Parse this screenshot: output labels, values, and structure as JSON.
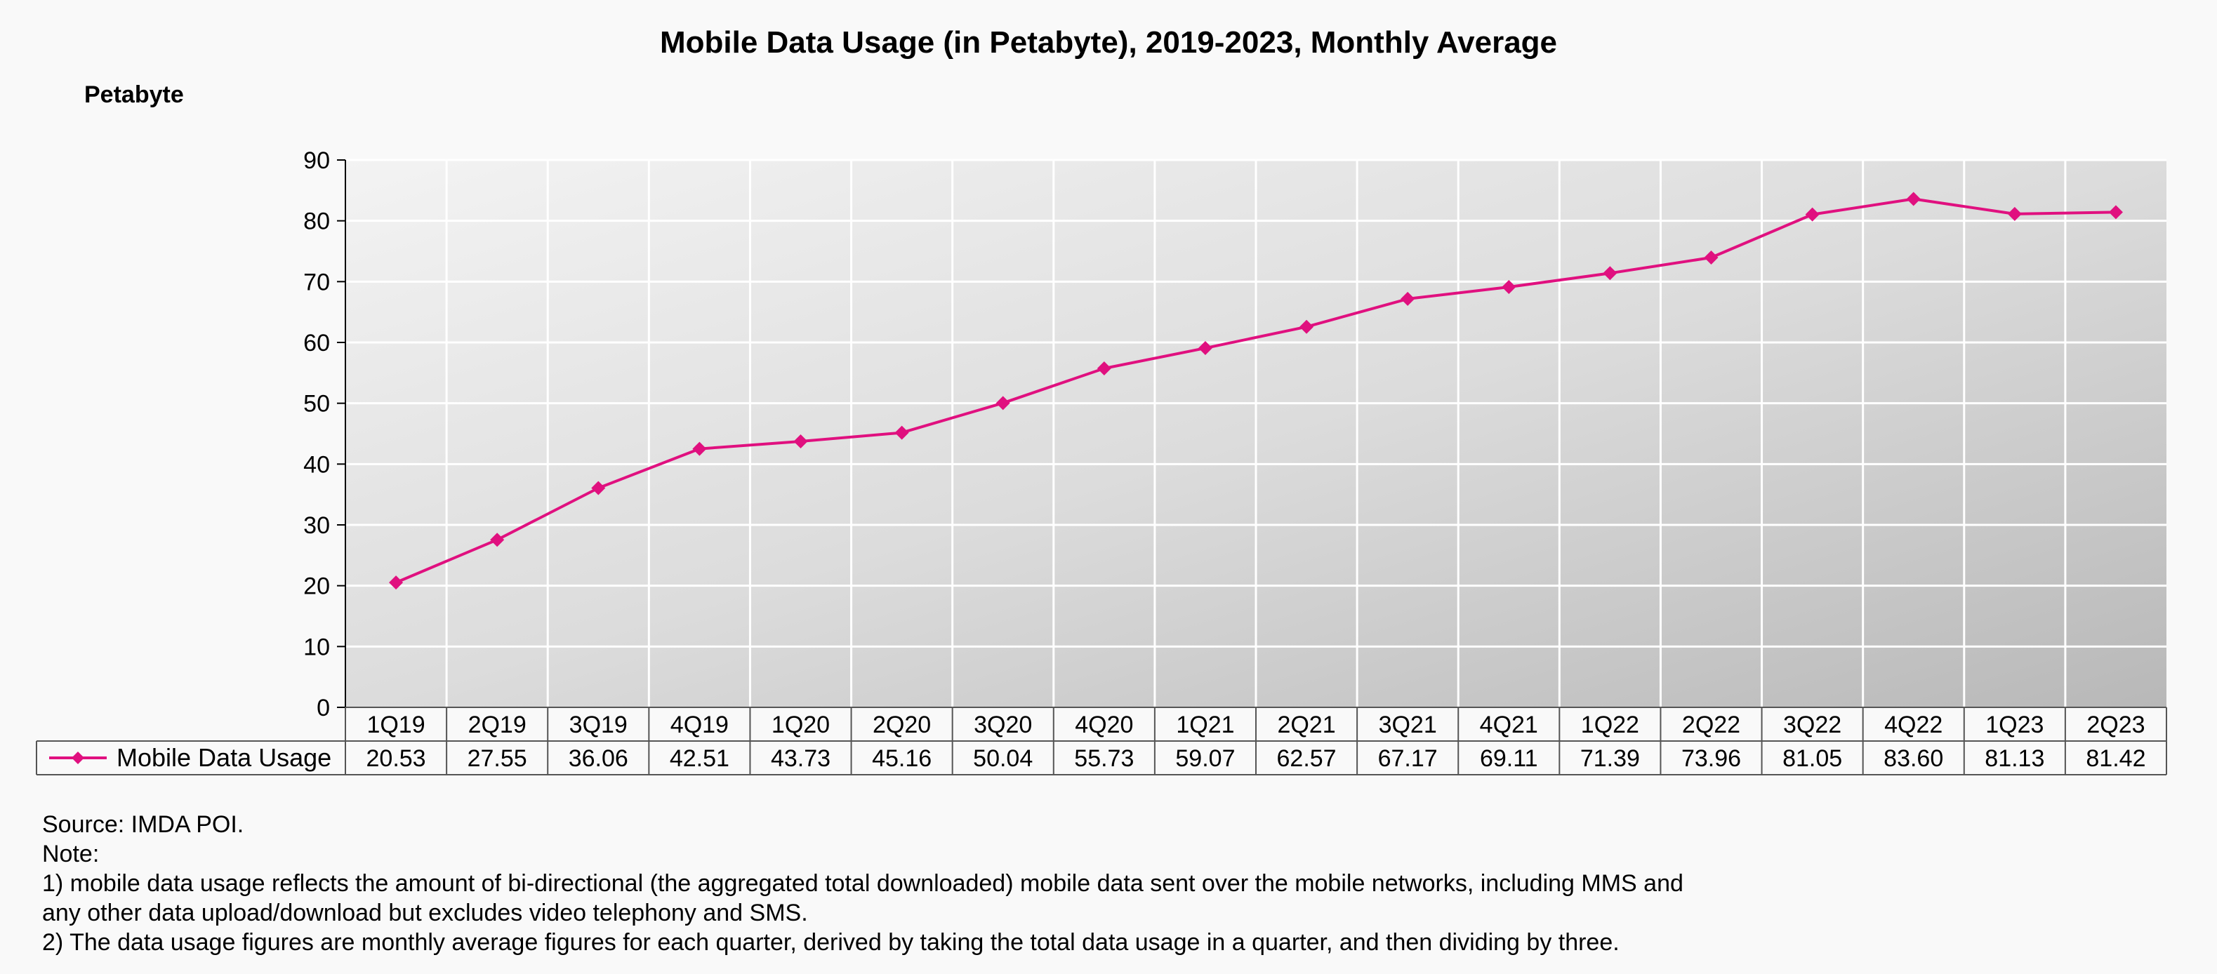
{
  "chart_data": {
    "type": "line",
    "title": "Mobile Data Usage (in Petabyte), 2019-2023, Monthly Average",
    "ylabel": "Petabyte",
    "xlabel": "",
    "ylim": [
      0,
      90
    ],
    "yticks": [
      "0",
      "10",
      "20",
      "30",
      "40",
      "50",
      "60",
      "70",
      "80",
      "90"
    ],
    "grid": true,
    "legend": "data-table-row",
    "categories": [
      "1Q19",
      "2Q19",
      "3Q19",
      "4Q19",
      "1Q20",
      "2Q20",
      "3Q20",
      "4Q20",
      "1Q21",
      "2Q21",
      "3Q21",
      "4Q21",
      "1Q22",
      "2Q22",
      "3Q22",
      "4Q22",
      "1Q23",
      "2Q23"
    ],
    "series": [
      {
        "name": "Mobile Data Usage",
        "color": "#e0107f",
        "marker": "diamond",
        "values": [
          20.53,
          27.55,
          36.06,
          42.51,
          43.73,
          45.16,
          50.04,
          55.73,
          59.07,
          62.57,
          67.17,
          69.11,
          71.39,
          73.96,
          81.05,
          83.6,
          81.13,
          81.42
        ],
        "value_labels": [
          "20.53",
          "27.55",
          "36.06",
          "42.51",
          "43.73",
          "45.16",
          "50.04",
          "55.73",
          "59.07",
          "62.57",
          "67.17",
          "69.11",
          "71.39",
          "73.96",
          "81.05",
          "83.60",
          "81.13",
          "81.42"
        ]
      }
    ]
  },
  "notes": {
    "source": "Source: IMDA POI.",
    "note_heading": "Note:",
    "note1_line1": "1)  mobile data usage reflects the amount of bi-directional (the aggregated total downloaded) mobile data sent over the mobile networks, including MMS and",
    "note1_line2": "any other data upload/download but excludes video telephony and SMS.",
    "note2": "2)  The data usage figures are monthly average figures for each quarter, derived by taking the total data usage in a quarter, and then dividing by three."
  }
}
